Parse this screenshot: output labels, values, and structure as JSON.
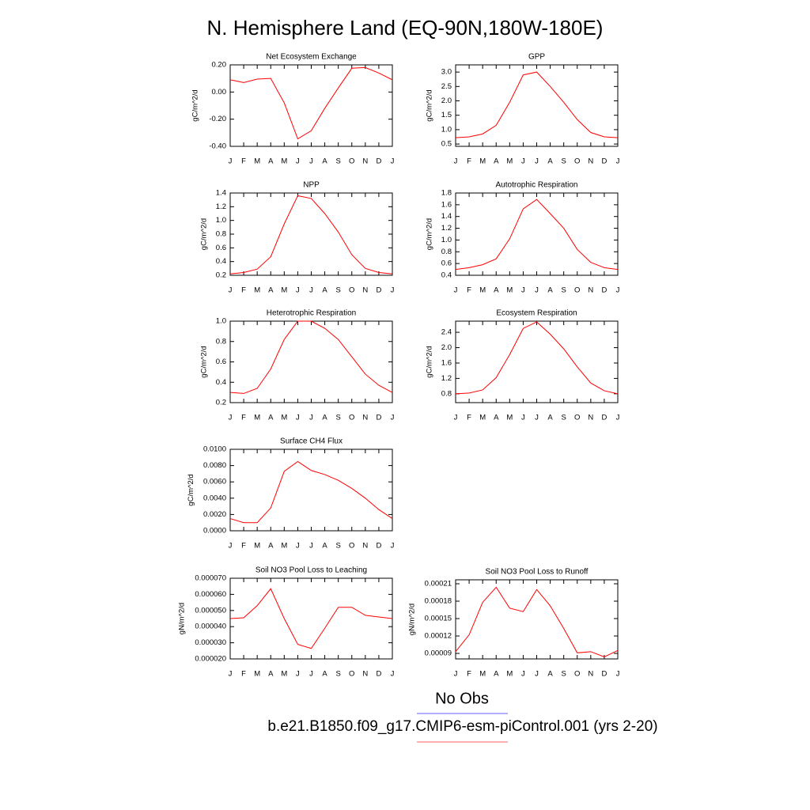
{
  "title": "N. Hemisphere Land (EQ-90N,180W-180E)",
  "legend": [
    {
      "name": "No Obs",
      "color": "#8080ff"
    },
    {
      "name": "b.e21.B1850.f09_g17.CMIP6-esm-piControl.001 (yrs 2-20)",
      "color": "#ff8080"
    }
  ],
  "chart_data": [
    {
      "type": "line",
      "title": "Net Ecosystem Exchange",
      "y_label": "gC/m^2/d",
      "color": "#ff0000",
      "categories": [
        "J",
        "F",
        "M",
        "A",
        "M",
        "J",
        "J",
        "A",
        "S",
        "O",
        "N",
        "D",
        "J"
      ],
      "values": [
        0.09,
        0.07,
        0.095,
        0.1,
        -0.08,
        -0.345,
        -0.285,
        -0.12,
        0.03,
        0.175,
        0.18,
        0.14,
        0.09
      ],
      "ylim": [
        -0.4,
        0.2
      ],
      "yticks": [
        {
          "value": -0.4,
          "label": "-0.40"
        },
        {
          "value": -0.2,
          "label": "-0.20"
        },
        {
          "value": 0,
          "label": "0.00"
        },
        {
          "value": 0.2,
          "label": "0.20"
        }
      ]
    },
    {
      "type": "line",
      "title": "GPP",
      "y_label": "gC/m^2/d",
      "color": "#ff0000",
      "categories": [
        "J",
        "F",
        "M",
        "A",
        "M",
        "J",
        "J",
        "A",
        "S",
        "O",
        "N",
        "D",
        "J"
      ],
      "values": [
        0.72,
        0.75,
        0.85,
        1.15,
        1.95,
        2.9,
        3.0,
        2.5,
        1.95,
        1.35,
        0.9,
        0.75,
        0.72
      ],
      "ylim": [
        0.42,
        3.25
      ],
      "yticks": [
        0.5,
        {
          "value": 1,
          "label": "1.0"
        },
        1.5,
        {
          "value": 2,
          "label": "2.0"
        },
        2.5,
        {
          "value": 3,
          "label": "3.0"
        }
      ]
    },
    {
      "type": "line",
      "title": "NPP",
      "y_label": "gC/m^2/d",
      "color": "#ff0000",
      "categories": [
        "J",
        "F",
        "M",
        "A",
        "M",
        "J",
        "J",
        "A",
        "S",
        "O",
        "N",
        "D",
        "J"
      ],
      "values": [
        0.22,
        0.24,
        0.29,
        0.47,
        0.95,
        1.36,
        1.32,
        1.1,
        0.83,
        0.5,
        0.3,
        0.24,
        0.22
      ],
      "ylim": [
        0.2,
        1.4
      ],
      "yticks": [
        0.2,
        0.4,
        0.6,
        0.8,
        {
          "value": 1,
          "label": "1.0"
        },
        1.2,
        1.4
      ]
    },
    {
      "type": "line",
      "title": "Autotrophic Respiration",
      "y_label": "gC/m^2/d",
      "color": "#ff0000",
      "categories": [
        "J",
        "F",
        "M",
        "A",
        "M",
        "J",
        "J",
        "A",
        "S",
        "O",
        "N",
        "D",
        "J"
      ],
      "values": [
        0.5,
        0.53,
        0.58,
        0.68,
        1.02,
        1.53,
        1.69,
        1.45,
        1.2,
        0.84,
        0.62,
        0.53,
        0.5
      ],
      "ylim": [
        0.4,
        1.8
      ],
      "yticks": [
        0.4,
        0.6,
        0.8,
        {
          "value": 1,
          "label": "1.0"
        },
        1.2,
        1.4,
        1.6,
        1.8
      ]
    },
    {
      "type": "line",
      "title": "Heterotrophic Respiration",
      "y_label": "gC/m^2/d",
      "color": "#ff0000",
      "categories": [
        "J",
        "F",
        "M",
        "A",
        "M",
        "J",
        "J",
        "A",
        "S",
        "O",
        "N",
        "D",
        "J"
      ],
      "values": [
        0.3,
        0.29,
        0.34,
        0.53,
        0.82,
        1.0,
        1.0,
        0.93,
        0.82,
        0.65,
        0.48,
        0.37,
        0.3
      ],
      "ylim": [
        0.2,
        1.0
      ],
      "yticks": [
        0.2,
        0.4,
        0.6,
        0.8,
        {
          "value": 1,
          "label": "1.0"
        }
      ]
    },
    {
      "type": "line",
      "title": "Ecosystem Respiration",
      "y_label": "gC/m^2/d",
      "color": "#ff0000",
      "categories": [
        "J",
        "F",
        "M",
        "A",
        "M",
        "J",
        "J",
        "A",
        "S",
        "O",
        "N",
        "D",
        "J"
      ],
      "values": [
        0.8,
        0.82,
        0.9,
        1.22,
        1.82,
        2.5,
        2.67,
        2.35,
        1.97,
        1.5,
        1.08,
        0.88,
        0.8
      ],
      "ylim": [
        0.57,
        2.69
      ],
      "yticks": [
        0.8,
        1.2,
        1.6,
        {
          "value": 2,
          "label": "2.0"
        },
        2.4
      ]
    },
    {
      "type": "line",
      "title": "Surface CH4 Flux",
      "y_label": "gC/m^2/d",
      "color": "#ff0000",
      "categories": [
        "J",
        "F",
        "M",
        "A",
        "M",
        "J",
        "J",
        "A",
        "S",
        "O",
        "N",
        "D",
        "J"
      ],
      "values": [
        0.0015,
        0.001,
        0.001,
        0.0028,
        0.0073,
        0.0085,
        0.0074,
        0.0069,
        0.0062,
        0.0052,
        0.004,
        0.0026,
        0.0015
      ],
      "ylim": [
        0,
        0.01
      ],
      "yticks": [
        {
          "value": 0,
          "label": "0.0000"
        },
        {
          "value": 0.002,
          "label": "0.0020"
        },
        {
          "value": 0.004,
          "label": "0.0040"
        },
        {
          "value": 0.006,
          "label": "0.0060"
        },
        {
          "value": 0.008,
          "label": "0.0080"
        },
        {
          "value": 0.01,
          "label": "0.0100"
        }
      ]
    },
    {
      "type": "line",
      "title": "Soil NO3 Pool Loss to Leaching",
      "y_label": "gN/m^2/d",
      "color": "#ff0000",
      "categories": [
        "J",
        "F",
        "M",
        "A",
        "M",
        "J",
        "J",
        "A",
        "S",
        "O",
        "N",
        "D",
        "J"
      ],
      "values": [
        4.5e-05,
        4.55e-05,
        5.3e-05,
        6.35e-05,
        4.5e-05,
        2.9e-05,
        2.65e-05,
        3.9e-05,
        5.2e-05,
        5.2e-05,
        4.7e-05,
        4.6e-05,
        4.5e-05
      ],
      "ylim": [
        2e-05,
        7e-05
      ],
      "yticks": [
        {
          "value": 2e-05,
          "label": "0.000020"
        },
        {
          "value": 3e-05,
          "label": "0.000030"
        },
        {
          "value": 4e-05,
          "label": "0.000040"
        },
        {
          "value": 5e-05,
          "label": "0.000050"
        },
        {
          "value": 6e-05,
          "label": "0.000060"
        },
        {
          "value": 7e-05,
          "label": "0.000070"
        }
      ]
    },
    {
      "type": "line",
      "title": "Soil NO3 Pool Loss to Runoff",
      "y_label": "gN/m^2/d",
      "color": "#ff0000",
      "categories": [
        "J",
        "F",
        "M",
        "A",
        "M",
        "J",
        "J",
        "A",
        "S",
        "O",
        "N",
        "D",
        "J"
      ],
      "values": [
        9.3e-05,
        0.000122,
        0.000178,
        0.000204,
        0.000168,
        0.000162,
        0.0002,
        0.000172,
        0.000133,
        9.1e-05,
        9.3e-05,
        8.4e-05,
        9.5e-05
      ],
      "ylim": [
        8.05e-05,
        0.0002168
      ],
      "yticks": [
        9e-05,
        0.00012,
        0.00015,
        0.00018,
        0.00021
      ]
    }
  ]
}
